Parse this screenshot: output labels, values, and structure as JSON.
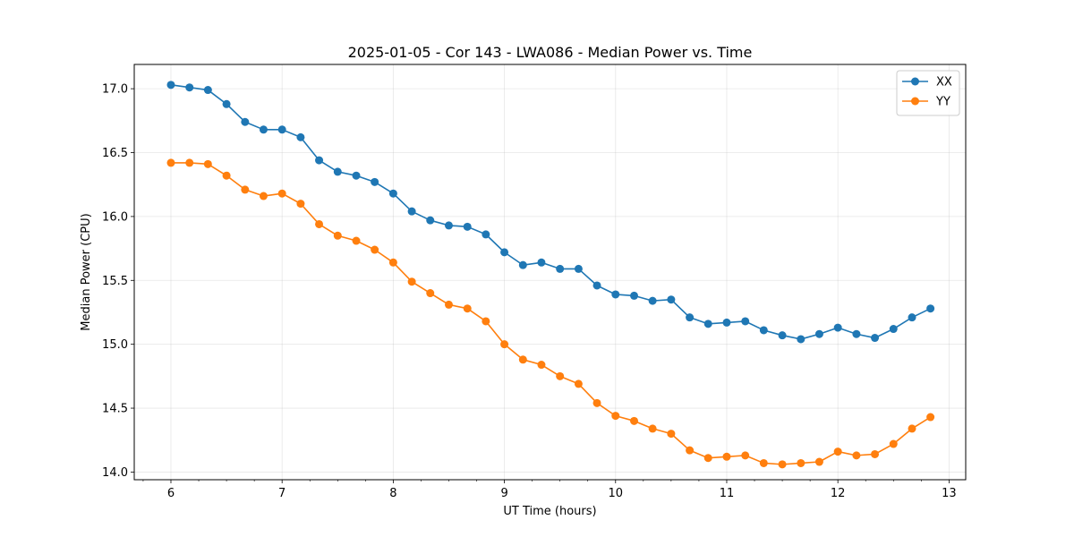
{
  "chart_data": {
    "type": "line",
    "title": "2025-01-05 - Cor 143 - LWA086 - Median Power vs. Time",
    "xlabel": "UT Time (hours)",
    "ylabel": "Median Power (CPU)",
    "xlim": [
      5.67,
      13.15
    ],
    "ylim": [
      13.94,
      17.19
    ],
    "xticks": [
      6,
      7,
      8,
      9,
      10,
      11,
      12,
      13
    ],
    "xtick_labels": [
      "6",
      "7",
      "8",
      "9",
      "10",
      "11",
      "12",
      "13"
    ],
    "x_minor_step": 0.25,
    "yticks": [
      14.0,
      14.5,
      15.0,
      15.5,
      16.0,
      16.5,
      17.0
    ],
    "ytick_labels": [
      "14.0",
      "14.5",
      "15.0",
      "15.5",
      "16.0",
      "16.5",
      "17.0"
    ],
    "grid": true,
    "legend_position": "top-right",
    "x": [
      6.0,
      6.167,
      6.333,
      6.5,
      6.667,
      6.833,
      7.0,
      7.167,
      7.333,
      7.5,
      7.667,
      7.833,
      8.0,
      8.167,
      8.333,
      8.5,
      8.667,
      8.833,
      9.0,
      9.167,
      9.333,
      9.5,
      9.667,
      9.833,
      10.0,
      10.167,
      10.333,
      10.5,
      10.667,
      10.833,
      11.0,
      11.167,
      11.333,
      11.5,
      11.667,
      11.833,
      12.0,
      12.167,
      12.333,
      12.5,
      12.667,
      12.833
    ],
    "series": [
      {
        "name": "XX",
        "color": "#1f77b4",
        "values": [
          17.03,
          17.01,
          16.99,
          16.88,
          16.74,
          16.68,
          16.68,
          16.62,
          16.44,
          16.35,
          16.32,
          16.27,
          16.18,
          16.04,
          15.97,
          15.93,
          15.92,
          15.86,
          15.72,
          15.62,
          15.64,
          15.59,
          15.59,
          15.46,
          15.39,
          15.38,
          15.34,
          15.35,
          15.21,
          15.16,
          15.17,
          15.18,
          15.11,
          15.07,
          15.04,
          15.08,
          15.13,
          15.08,
          15.05,
          15.12,
          15.21,
          15.28
        ]
      },
      {
        "name": "YY",
        "color": "#ff7f0e",
        "values": [
          16.42,
          16.42,
          16.41,
          16.32,
          16.21,
          16.16,
          16.18,
          16.1,
          15.94,
          15.85,
          15.81,
          15.74,
          15.64,
          15.49,
          15.4,
          15.31,
          15.28,
          15.18,
          15.0,
          14.88,
          14.84,
          14.75,
          14.69,
          14.54,
          14.44,
          14.4,
          14.34,
          14.3,
          14.17,
          14.11,
          14.12,
          14.13,
          14.07,
          14.06,
          14.07,
          14.08,
          14.16,
          14.13,
          14.14,
          14.22,
          14.34,
          14.43
        ]
      }
    ]
  }
}
